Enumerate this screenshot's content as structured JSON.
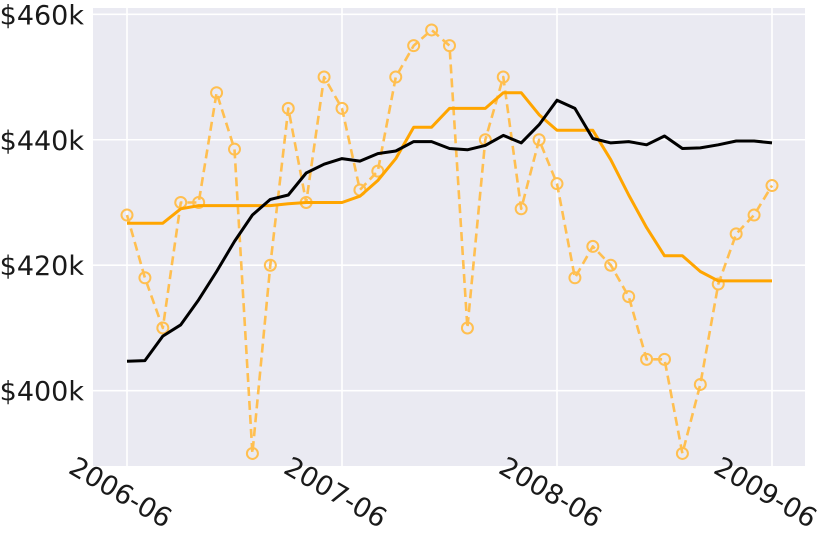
{
  "chart_data": {
    "type": "line",
    "title": "",
    "xlabel": "",
    "ylabel": "",
    "ylim": [
      388000,
      461000
    ],
    "y_ticks": [
      {
        "value": 400000,
        "label": "$400k"
      },
      {
        "value": 420000,
        "label": "$420k"
      },
      {
        "value": 440000,
        "label": "$440k"
      },
      {
        "value": 460000,
        "label": "$460k"
      }
    ],
    "x_ticks": [
      {
        "value": "2006-06",
        "label": "2006-06"
      },
      {
        "value": "2007-06",
        "label": "2007-06"
      },
      {
        "value": "2008-06",
        "label": "2008-06"
      },
      {
        "value": "2009-06",
        "label": "2009-06"
      }
    ],
    "x": [
      "2006-06",
      "2006-07",
      "2006-08",
      "2006-09",
      "2006-10",
      "2006-11",
      "2006-12",
      "2007-01",
      "2007-02",
      "2007-03",
      "2007-04",
      "2007-05",
      "2007-06",
      "2007-07",
      "2007-08",
      "2007-09",
      "2007-10",
      "2007-11",
      "2007-12",
      "2008-01",
      "2008-02",
      "2008-03",
      "2008-04",
      "2008-05",
      "2008-06",
      "2008-07",
      "2008-08",
      "2008-09",
      "2008-10",
      "2008-11",
      "2008-12",
      "2009-01",
      "2009-02",
      "2009-03",
      "2009-04",
      "2009-05",
      "2009-06"
    ],
    "grid": true,
    "legend": "none",
    "background": "#eaeaf2",
    "series": [
      {
        "color": "#000000",
        "style": "solid",
        "values": [
          404700,
          404800,
          408700,
          410500,
          414500,
          419000,
          423800,
          428000,
          430500,
          431200,
          434700,
          436100,
          437000,
          436600,
          437800,
          438200,
          439700,
          439700,
          438600,
          438400,
          439100,
          440700,
          439500,
          442400,
          446300,
          445000,
          440200,
          439500,
          439700,
          439200,
          440600,
          438600,
          438700,
          439200,
          439800,
          439800,
          439500
        ]
      },
      {
        "color": "#ffa500",
        "style": "solid",
        "values": [
          426700,
          426700,
          426700,
          429000,
          429500,
          429500,
          429500,
          429500,
          429500,
          429800,
          430000,
          430000,
          430000,
          431000,
          433500,
          437000,
          442000,
          442000,
          445000,
          445000,
          445000,
          447500,
          447500,
          444000,
          441500,
          441500,
          441500,
          436800,
          431200,
          426000,
          421500,
          421500,
          419000,
          417500,
          417500,
          417500,
          417500
        ]
      },
      {
        "color": "#ffbf50",
        "style": "dashed-markers",
        "values": [
          428000,
          418000,
          410000,
          430000,
          430000,
          447500,
          438500,
          390000,
          420000,
          445000,
          430000,
          450000,
          445000,
          432000,
          435000,
          450000,
          455000,
          457500,
          455000,
          410000,
          440000,
          450000,
          429000,
          440000,
          433000,
          418000,
          423000,
          420000,
          415000,
          405000,
          405000,
          390000,
          401000,
          417000,
          425000,
          428000,
          432700
        ]
      }
    ]
  }
}
